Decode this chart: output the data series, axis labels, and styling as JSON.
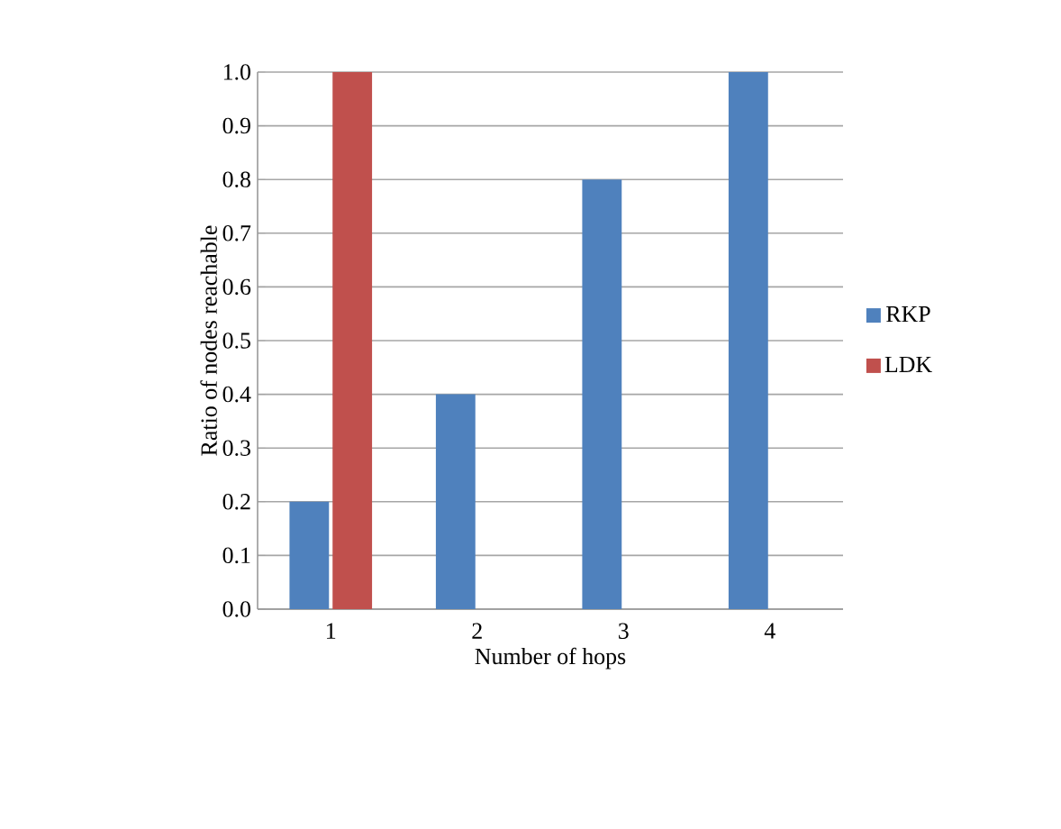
{
  "chart_data": {
    "type": "bar",
    "xlabel": "Number of hops",
    "ylabel": "Ratio of nodes reachable",
    "categories": [
      "1",
      "2",
      "3",
      "4"
    ],
    "series": [
      {
        "name": "RKP",
        "color": "#4f81bd",
        "values": [
          0.2,
          0.4,
          0.8,
          1.0
        ]
      },
      {
        "name": "LDK",
        "color": "#c0504d",
        "values": [
          1.0,
          null,
          null,
          null
        ]
      }
    ],
    "ylim": [
      0,
      1.0
    ],
    "yticks": [
      {
        "value": 0,
        "label": "0.0"
      },
      {
        "value": 0.1,
        "label": "0.1"
      },
      {
        "value": 0.2,
        "label": "0.2"
      },
      {
        "value": 0.3,
        "label": "0.3"
      },
      {
        "value": 0.4,
        "label": "0.4"
      },
      {
        "value": 0.5,
        "label": "0.5"
      },
      {
        "value": 0.6,
        "label": "0.6"
      },
      {
        "value": 0.7,
        "label": "0.7"
      },
      {
        "value": 0.8,
        "label": "0.8"
      },
      {
        "value": 0.9,
        "label": "0.9"
      },
      {
        "value": 1.0,
        "label": "1.0"
      }
    ],
    "grid": "y",
    "legend": "right"
  }
}
